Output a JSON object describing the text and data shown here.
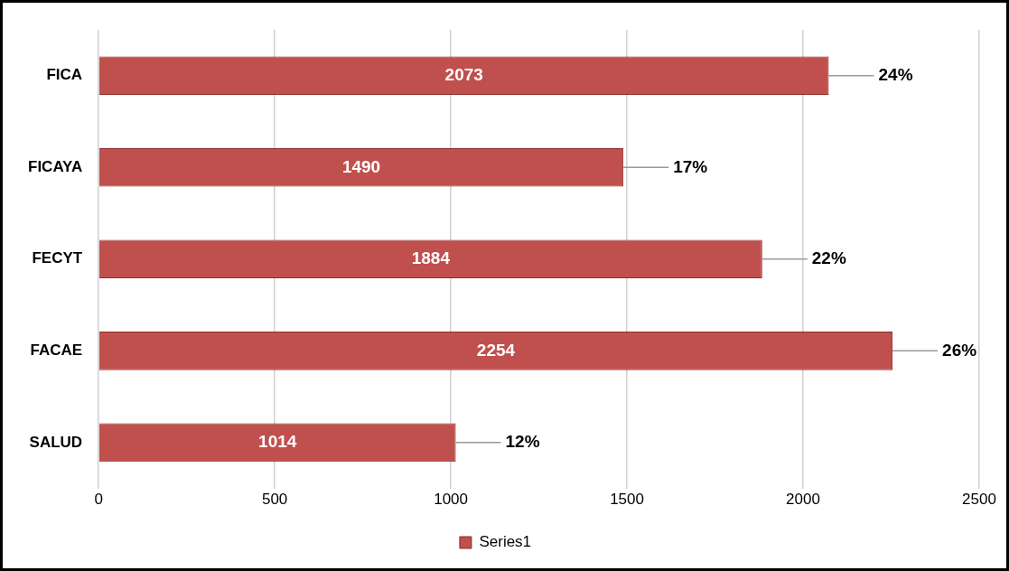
{
  "chart_data": {
    "type": "bar",
    "orientation": "horizontal",
    "categories": [
      "FICA",
      "FICAYA",
      "FECYT",
      "FACAE",
      "SALUD"
    ],
    "series": [
      {
        "name": "Series1",
        "color": "#c0504d",
        "values": [
          2073,
          1490,
          1884,
          2254,
          1014
        ]
      }
    ],
    "xlim": [
      0,
      2500
    ],
    "xticks": [
      0,
      500,
      1000,
      1500,
      2000,
      2500
    ],
    "grid": "x",
    "legend": "bottom",
    "data_labels": true,
    "annotations": [
      {
        "text": "24%",
        "x": 2073,
        "y": "FICA"
      },
      {
        "text": "17%",
        "x": 1490,
        "y": "FICAYA"
      },
      {
        "text": "22%",
        "x": 1884,
        "y": "FECYT"
      },
      {
        "text": "26%",
        "x": 2254,
        "y": "FACAE"
      },
      {
        "text": "12%",
        "x": 1014,
        "y": "SALUD"
      }
    ]
  }
}
